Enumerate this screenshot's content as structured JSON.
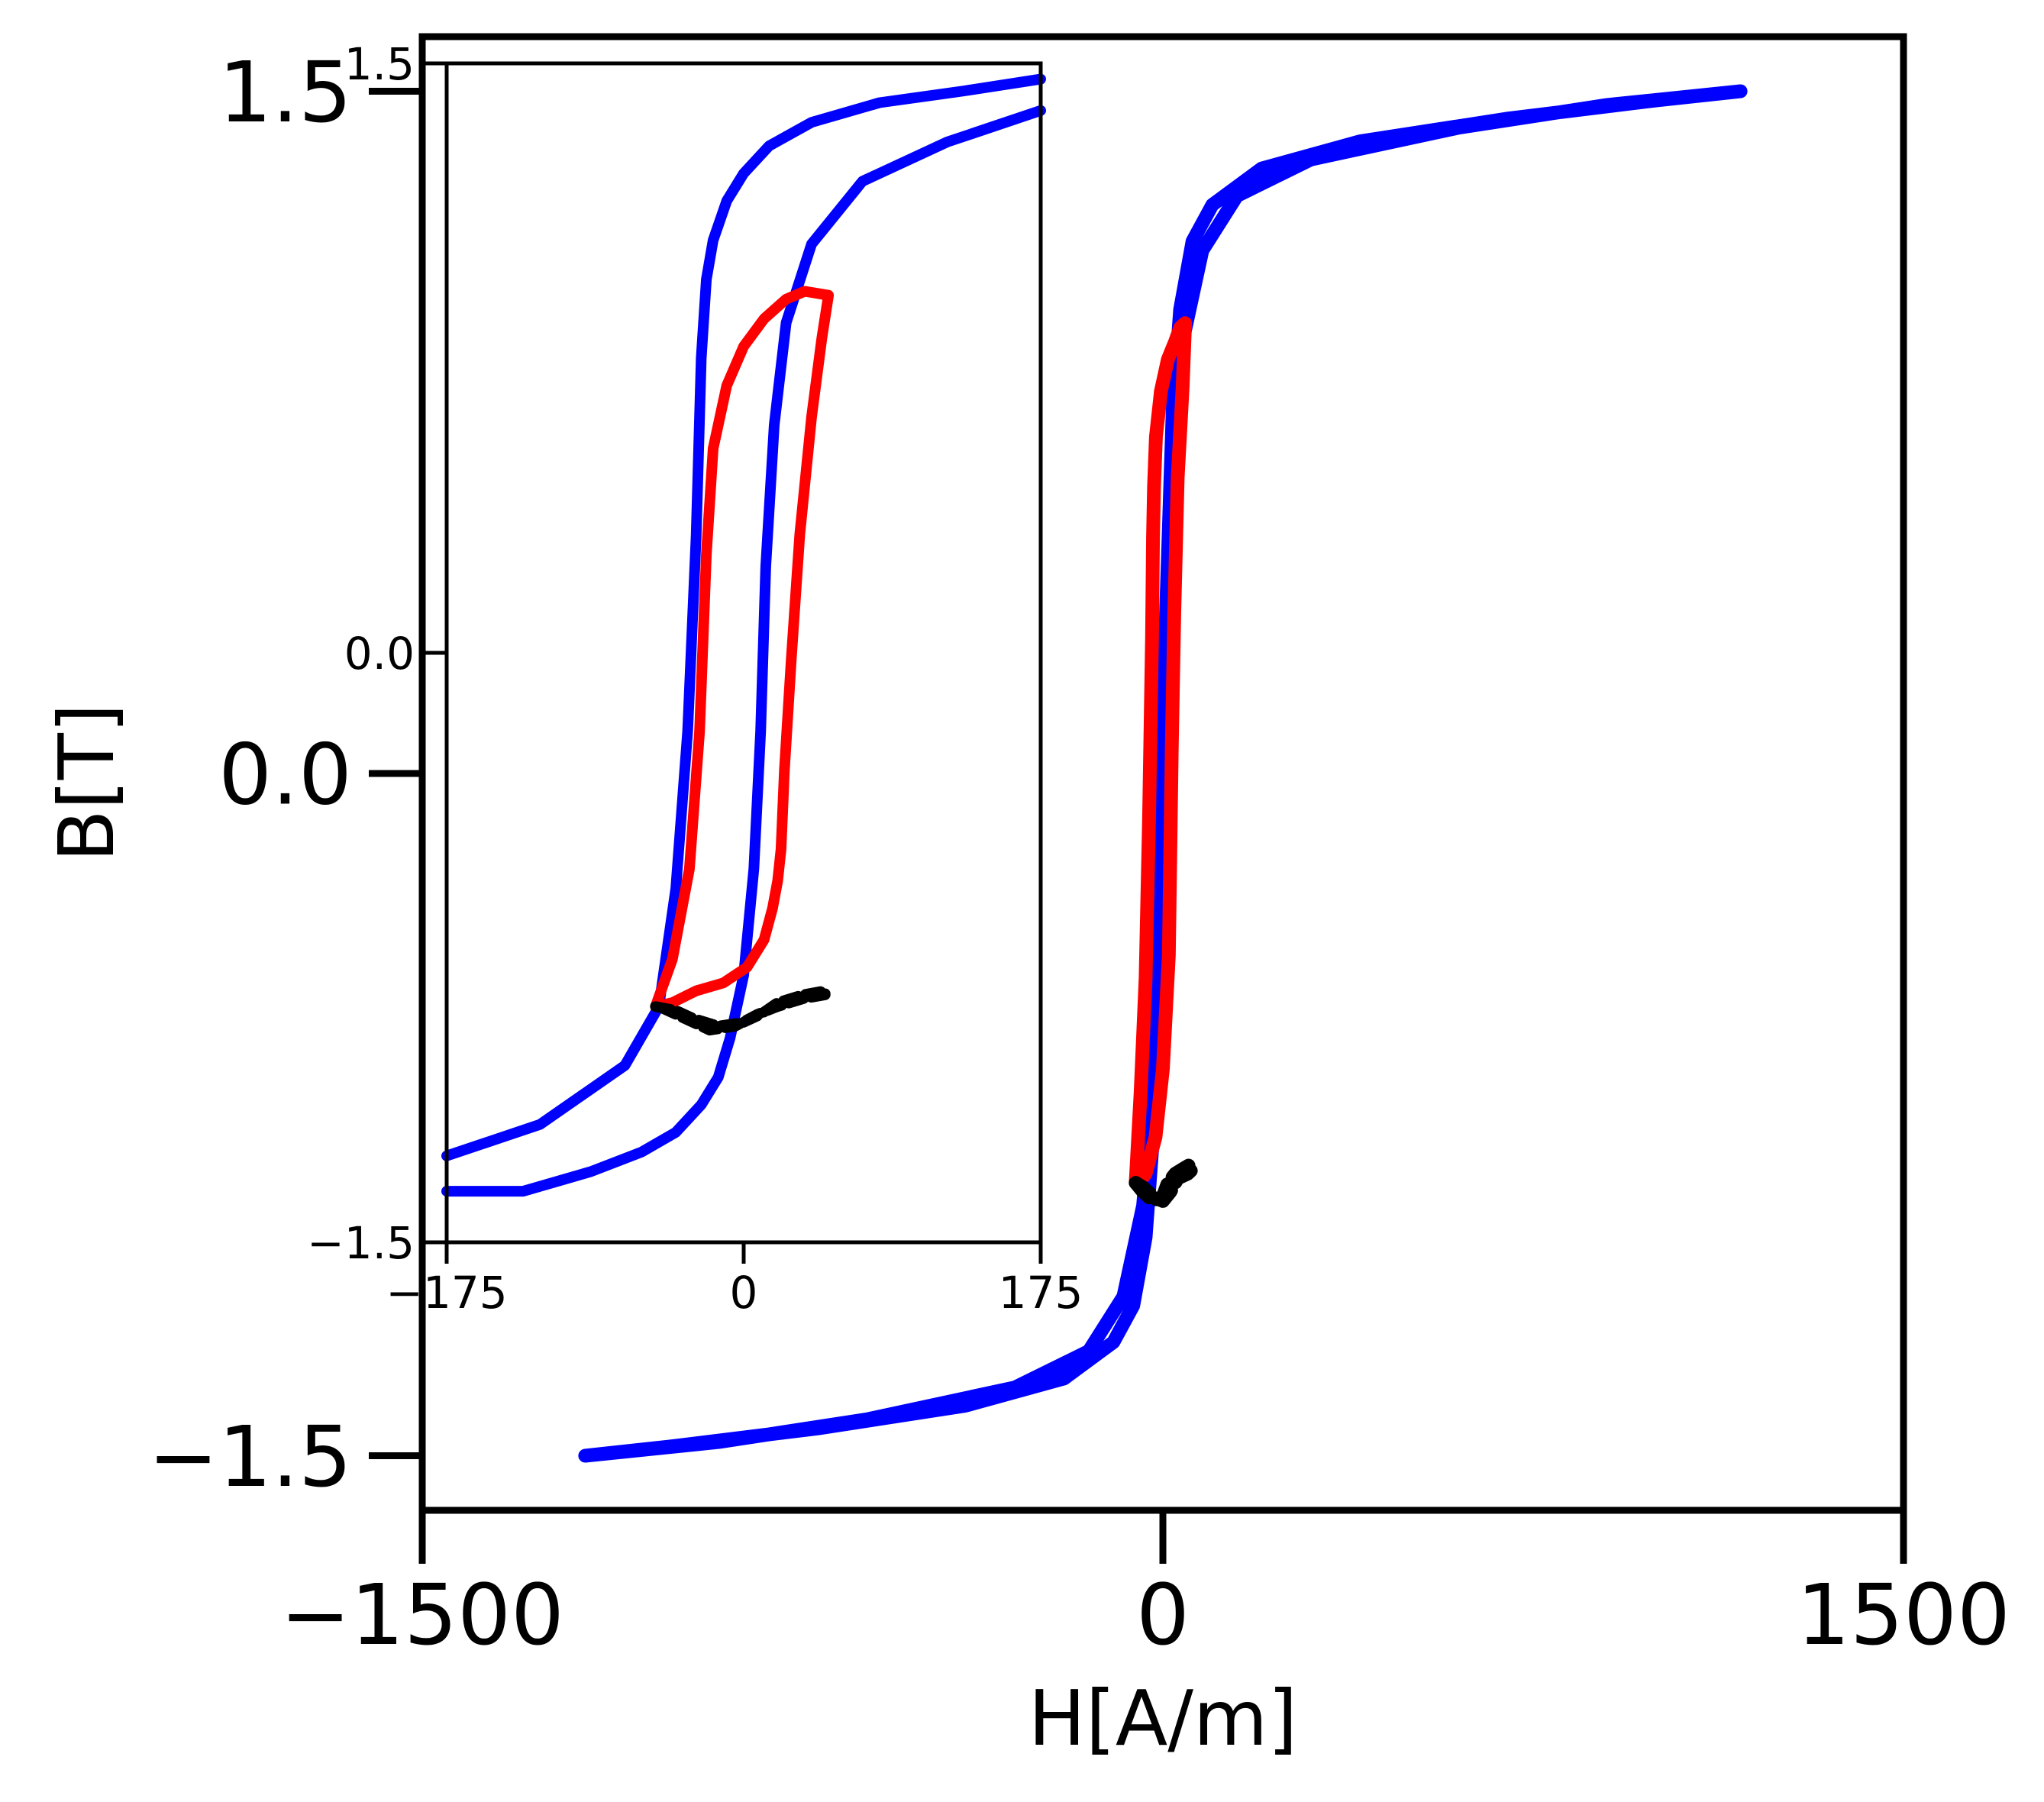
{
  "chart_data": [
    {
      "type": "line",
      "title": "",
      "xlabel": "H[A/m]",
      "ylabel": "B[T]",
      "xlim": [
        -1500,
        1500
      ],
      "ylim": [
        -1.62,
        1.62
      ],
      "xticks": [
        -1500,
        0,
        1500
      ],
      "yticks": [
        -1.5,
        0.0,
        1.5
      ],
      "xtick_labels": [
        "−1500",
        "0",
        "1500"
      ],
      "ytick_labels": [
        "−1.5",
        "0.0",
        "1.5"
      ],
      "grid": false,
      "legend": "none",
      "series": [
        {
          "color": "#0000ff",
          "style": "solid",
          "x": [
            1170,
            900,
            600,
            300,
            150,
            80,
            40,
            20,
            8,
            -5,
            -20,
            -35,
            -60,
            -100,
            -200,
            -400,
            -700,
            -1000,
            -1170,
            -900,
            -600,
            -300,
            -150,
            -80,
            -40,
            -20,
            -8,
            5,
            20,
            35,
            60,
            100,
            200,
            400,
            700,
            1000,
            1170
          ],
          "y": [
            1.5,
            1.47,
            1.42,
            1.35,
            1.27,
            1.15,
            0.95,
            0.7,
            0.3,
            -0.3,
            -0.8,
            -1.02,
            -1.17,
            -1.25,
            -1.33,
            -1.39,
            -1.44,
            -1.48,
            -1.5,
            -1.47,
            -1.42,
            -1.35,
            -1.27,
            -1.15,
            -0.95,
            -0.7,
            -0.3,
            0.3,
            0.8,
            1.02,
            1.17,
            1.25,
            1.33,
            1.39,
            1.44,
            1.48,
            1.5
          ]
        },
        {
          "color": "#ff0000",
          "style": "solid",
          "x": [
            -55,
            -45,
            -35,
            -28,
            -22,
            -20,
            -18,
            -14,
            -4,
            10,
            25,
            35,
            45,
            40,
            30,
            23,
            18,
            15,
            12,
            0,
            -15,
            -35,
            -50,
            -55
          ],
          "y": [
            -0.9,
            -0.7,
            -0.45,
            -0.1,
            0.3,
            0.52,
            0.63,
            0.74,
            0.84,
            0.91,
            0.95,
            0.98,
            0.99,
            0.85,
            0.65,
            0.35,
            0.05,
            -0.18,
            -0.4,
            -0.65,
            -0.8,
            -0.88,
            -0.9,
            -0.9
          ]
        },
        {
          "color": "#000000",
          "style": "dashed",
          "x": [
            -55,
            -40,
            -20,
            0,
            10,
            25,
            40,
            55,
            60,
            50,
            30,
            15,
            0,
            -20,
            -40,
            -55
          ],
          "y": [
            -0.9,
            -0.92,
            -0.94,
            -0.93,
            -0.9,
            -0.88,
            -0.87,
            -0.86,
            -0.87,
            -0.88,
            -0.89,
            -0.92,
            -0.94,
            -0.93,
            -0.91,
            -0.9
          ]
        }
      ]
    },
    {
      "type": "line",
      "title": "",
      "xlabel": "",
      "ylabel": "",
      "xlim": [
        -175,
        175
      ],
      "ylim": [
        -1.5,
        1.5
      ],
      "xticks": [
        -175,
        0,
        175
      ],
      "yticks": [
        -1.5,
        0.0,
        1.5
      ],
      "xtick_labels": [
        "−175",
        "0",
        "175"
      ],
      "ytick_labels": [
        "−1.5",
        "0.0",
        "1.5"
      ],
      "grid": false,
      "legend": "none",
      "series": [
        {
          "color": "#0000ff",
          "style": "solid",
          "x": [
            175,
            120,
            70,
            40,
            25,
            18,
            13,
            10,
            6,
            0,
            -8,
            -15,
            -25,
            -40,
            -60,
            -90,
            -130,
            -175
          ],
          "y": [
            1.38,
            1.3,
            1.2,
            1.04,
            0.84,
            0.58,
            0.22,
            -0.2,
            -0.55,
            -0.82,
            -0.98,
            -1.08,
            -1.15,
            -1.22,
            -1.27,
            -1.32,
            -1.37,
            -1.37
          ],
          "note_ignore": ""
        },
        {
          "color": "#0000ff",
          "style": "solid",
          "x": [
            -175,
            -120,
            -70,
            -50,
            -40,
            -33,
            -28,
            -25,
            -22,
            -18,
            -10,
            0,
            15,
            40,
            80,
            130,
            175
          ],
          "y": [
            -1.28,
            -1.2,
            -1.05,
            -0.9,
            -0.6,
            -0.2,
            0.3,
            0.75,
            0.95,
            1.05,
            1.15,
            1.22,
            1.29,
            1.35,
            1.4,
            1.43,
            1.46
          ]
        },
        {
          "color": "#ff0000",
          "style": "solid",
          "x": [
            -52,
            -42,
            -32,
            -26,
            -22,
            -18,
            -10,
            0,
            12,
            25,
            36,
            50,
            46,
            40,
            33,
            28,
            24,
            22,
            20,
            17,
            12,
            2,
            -12,
            -28,
            -42,
            -52
          ],
          "y": [
            -0.9,
            -0.78,
            -0.55,
            -0.2,
            0.25,
            0.52,
            0.68,
            0.78,
            0.85,
            0.9,
            0.92,
            0.91,
            0.8,
            0.6,
            0.3,
            -0.02,
            -0.3,
            -0.5,
            -0.58,
            -0.65,
            -0.73,
            -0.8,
            -0.84,
            -0.86,
            -0.89,
            -0.9
          ]
        },
        {
          "color": "#000000",
          "style": "dashed",
          "x": [
            -52,
            -40,
            -30,
            -15,
            0,
            10,
            20,
            35,
            48,
            48,
            35,
            20,
            8,
            -5,
            -20,
            -35,
            -50
          ],
          "y": [
            -0.9,
            -0.91,
            -0.93,
            -0.95,
            -0.94,
            -0.92,
            -0.89,
            -0.87,
            -0.86,
            -0.87,
            -0.88,
            -0.9,
            -0.92,
            -0.95,
            -0.96,
            -0.93,
            -0.9
          ]
        }
      ]
    }
  ]
}
